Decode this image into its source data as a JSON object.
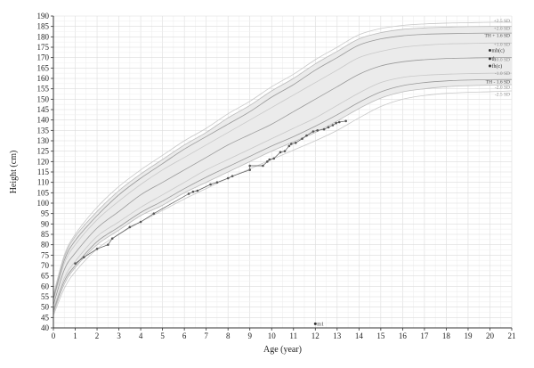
{
  "chart_data": {
    "type": "line",
    "xlabel": "Age (year)",
    "ylabel": "Height (cm)",
    "xlim": [
      0,
      21
    ],
    "ylim": [
      40,
      190
    ],
    "xticks": [
      0,
      1,
      2,
      3,
      4,
      5,
      6,
      7,
      8,
      9,
      10,
      11,
      12,
      13,
      14,
      15,
      16,
      17,
      18,
      19,
      20,
      21
    ],
    "yticks": [
      40,
      45,
      50,
      55,
      60,
      65,
      70,
      75,
      80,
      85,
      90,
      95,
      100,
      105,
      110,
      115,
      120,
      125,
      130,
      135,
      140,
      145,
      150,
      155,
      160,
      165,
      170,
      175,
      180,
      185,
      190
    ],
    "grid": true,
    "shaded_band": {
      "between": [
        "+2.0 SD",
        "-2.0 SD"
      ],
      "color": "#ebebeb"
    },
    "reference_curves": [
      {
        "name": "+2.5 SD",
        "color": "#c8c8c8",
        "x": [
          0,
          0.5,
          1,
          2,
          3,
          4,
          5,
          6,
          7,
          8,
          9,
          10,
          11,
          12,
          13,
          14,
          15,
          16,
          17,
          18,
          19,
          20,
          21
        ],
        "y": [
          56,
          75,
          85,
          98,
          108,
          116,
          123,
          130,
          136,
          143,
          149,
          156,
          162,
          169,
          175,
          181,
          184,
          185.5,
          186.2,
          186.6,
          186.8,
          187,
          187
        ]
      },
      {
        "name": "+2.0 SD",
        "color": "#bbbbbb",
        "x": [
          0,
          0.5,
          1,
          2,
          3,
          4,
          5,
          6,
          7,
          8,
          9,
          10,
          11,
          12,
          13,
          14,
          15,
          16,
          17,
          18,
          19,
          20,
          21
        ],
        "y": [
          55,
          74,
          84,
          96,
          106,
          114,
          121,
          128,
          134,
          141,
          147,
          154,
          160,
          167,
          173,
          179,
          182,
          183.6,
          184.3,
          184.7,
          184.9,
          185,
          185
        ]
      },
      {
        "name": "+1.0 SD",
        "color": "#c8c8c8",
        "x": [
          0,
          0.5,
          1,
          2,
          3,
          4,
          5,
          6,
          7,
          8,
          9,
          10,
          11,
          12,
          13,
          14,
          15,
          16,
          17,
          18,
          19,
          20,
          21
        ],
        "y": [
          53,
          71,
          80,
          92,
          101,
          109,
          116,
          122,
          128,
          134,
          140,
          146,
          152,
          158,
          164,
          170,
          173,
          175,
          176,
          176.6,
          176.8,
          177,
          177
        ]
      },
      {
        "name": "TH + 1.6 SD",
        "color": "#999999",
        "x": [
          0,
          0.5,
          1,
          2,
          3,
          4,
          5,
          6,
          7,
          8,
          9,
          10,
          11,
          12,
          13,
          14,
          15,
          16,
          17,
          18,
          19,
          20,
          21
        ],
        "y": [
          54,
          72.5,
          82,
          94,
          104,
          112,
          119,
          126,
          132,
          138,
          144,
          151,
          157,
          164,
          170,
          176,
          179,
          180.5,
          181.2,
          181.5,
          181.7,
          181.8,
          181.8
        ]
      },
      {
        "name": "±0.0 SD",
        "color": "#999999",
        "x": [
          0,
          0.5,
          1,
          2,
          3,
          4,
          5,
          6,
          7,
          8,
          9,
          10,
          11,
          12,
          13,
          14,
          15,
          16,
          17,
          18,
          19,
          20,
          21
        ],
        "y": [
          51,
          68,
          76,
          88,
          96,
          104,
          110,
          116,
          122,
          128,
          133,
          138,
          144,
          150,
          156,
          162,
          166,
          168,
          169,
          169.6,
          169.8,
          170,
          170
        ]
      },
      {
        "name": "-1.0 SD",
        "color": "#c8c8c8",
        "x": [
          0,
          0.5,
          1,
          2,
          3,
          4,
          5,
          6,
          7,
          8,
          9,
          10,
          11,
          12,
          13,
          14,
          15,
          16,
          17,
          18,
          19,
          20,
          21
        ],
        "y": [
          49,
          64,
          72,
          84,
          91,
          98,
          104,
          110,
          116,
          121,
          126,
          131,
          136,
          141,
          147,
          153,
          158,
          160.5,
          161.5,
          162,
          162.3,
          162.5,
          162.5
        ]
      },
      {
        "name": "TH - 1.6 SD",
        "color": "#999999",
        "x": [
          0,
          0.5,
          1,
          2,
          3,
          4,
          5,
          6,
          7,
          8,
          9,
          10,
          11,
          12,
          13,
          14,
          15,
          16,
          17,
          18,
          19,
          20,
          21
        ],
        "y": [
          48,
          62.5,
          70,
          81.5,
          88.5,
          95.5,
          101,
          107,
          112.5,
          117.5,
          122.5,
          127.5,
          132,
          137,
          142.5,
          148.5,
          153.5,
          156.5,
          158,
          158.8,
          159.2,
          159.4,
          159.5
        ]
      },
      {
        "name": "-2.0 SD",
        "color": "#bbbbbb",
        "x": [
          0,
          0.5,
          1,
          2,
          3,
          4,
          5,
          6,
          7,
          8,
          9,
          10,
          11,
          12,
          13,
          14,
          15,
          16,
          17,
          18,
          19,
          20,
          21
        ],
        "y": [
          47,
          61,
          69,
          80,
          87,
          94,
          99,
          105,
          110,
          115,
          120,
          125,
          129.5,
          134,
          139.5,
          145.5,
          150.5,
          153.5,
          155,
          156,
          156.5,
          156.8,
          157
        ]
      },
      {
        "name": "-2.5 SD",
        "color": "#c8c8c8",
        "x": [
          0,
          0.5,
          1,
          2,
          3,
          4,
          5,
          6,
          7,
          8,
          9,
          10,
          11,
          12,
          13,
          14,
          15,
          16,
          17,
          18,
          19,
          20,
          21
        ],
        "y": [
          46,
          59,
          67,
          78,
          85,
          91,
          96.5,
          102,
          107,
          112,
          116.5,
          121,
          125.5,
          130,
          135,
          141,
          146.5,
          150,
          151.8,
          152.8,
          153.3,
          153.6,
          154
        ]
      }
    ],
    "reference_labels": [
      "+2.5 SD",
      "+2.0 SD",
      "TH + 1.6 SD",
      "+1.0 SD",
      "±0.0 SD",
      "-1.0 SD",
      "TH - 1.6 SD",
      "-2.0 SD",
      "-2.5 SD"
    ],
    "series": [
      {
        "type": "line",
        "color": "#555555",
        "x": [
          1,
          1.4,
          2,
          2.5,
          2.7,
          3.5,
          4,
          4.6,
          6.2,
          6.4,
          6.6,
          7.2,
          7.5,
          8,
          8.2,
          9,
          9,
          9.6,
          9.8,
          9.9,
          10.1,
          10.4,
          10.6,
          10.8,
          10.9,
          11.1,
          11.4,
          11.6,
          11.9,
          12.1,
          12.4,
          12.6,
          12.8,
          12.95,
          13.1,
          13.4
        ],
        "y": [
          71,
          74,
          78,
          80,
          83,
          88.5,
          91,
          95,
          104.5,
          105.5,
          106,
          109,
          110,
          112,
          113,
          116,
          118,
          118,
          120,
          121,
          121.5,
          124.5,
          125,
          127.5,
          128.5,
          129,
          131,
          132.5,
          134.5,
          135,
          135.5,
          136.5,
          137.5,
          138.5,
          139,
          139.5
        ]
      }
    ],
    "point_marks": [
      {
        "label": "mh(c)",
        "x": 20,
        "y": 173.5
      },
      {
        "label": "th",
        "x": 20,
        "y": 169.5
      },
      {
        "label": "fh(c)",
        "x": 20,
        "y": 166
      },
      {
        "label": "m1",
        "x": 12,
        "y": 42
      }
    ]
  }
}
